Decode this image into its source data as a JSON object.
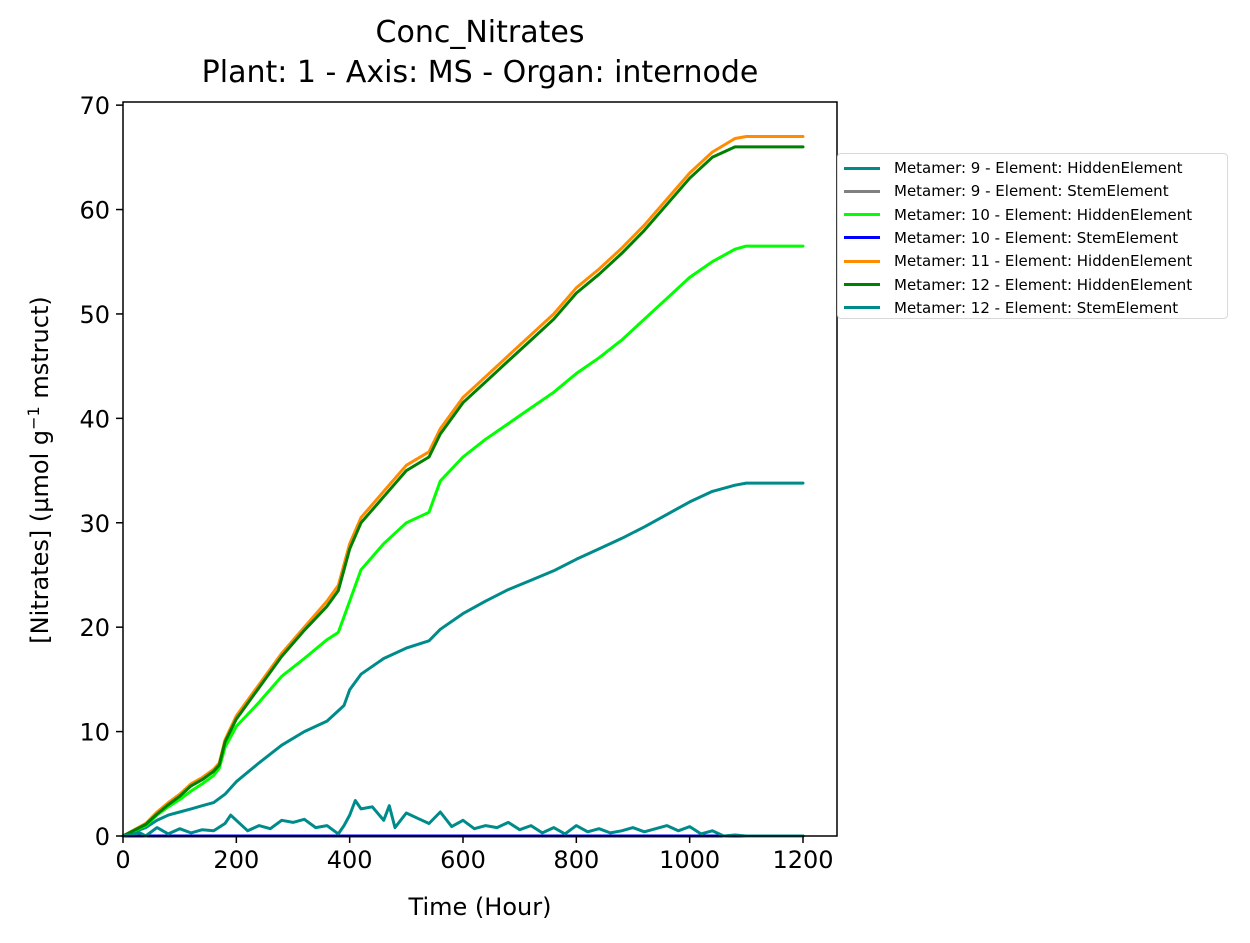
{
  "chart_data": {
    "type": "line",
    "title": "Conc_Nitrates",
    "subtitle": "Plant: 1 - Axis: MS - Organ: internode",
    "xlabel": "Time (Hour)",
    "ylabel_prefix": "[Nitrates] (µmol g",
    "ylabel_sup": "−1",
    "ylabel_suffix": " mstruct)",
    "xlim": [
      0,
      1260
    ],
    "ylim": [
      0,
      70.3
    ],
    "x_ticks": [
      0,
      200,
      400,
      600,
      800,
      1000,
      1200
    ],
    "y_ticks": [
      0,
      10,
      20,
      30,
      40,
      50,
      60,
      70
    ],
    "grid": false,
    "legend_position": "outside-right",
    "series": [
      {
        "name": "Metamer: 9 - Element: HiddenElement",
        "color": "#008b8b",
        "x": [
          0,
          40,
          60,
          80,
          100,
          120,
          140,
          160,
          180,
          200,
          240,
          280,
          320,
          360,
          390,
          400,
          420,
          460,
          500,
          540,
          560,
          600,
          640,
          680,
          720,
          760,
          800,
          840,
          880,
          920,
          960,
          1000,
          1040,
          1080,
          1100,
          1200
        ],
        "y": [
          0,
          0.8,
          1.5,
          2.0,
          2.3,
          2.6,
          2.9,
          3.2,
          4.0,
          5.2,
          7.0,
          8.7,
          10.0,
          11.0,
          12.5,
          14.0,
          15.5,
          17.0,
          18.0,
          18.7,
          19.8,
          21.3,
          22.5,
          23.6,
          24.5,
          25.4,
          26.5,
          27.5,
          28.5,
          29.6,
          30.8,
          32.0,
          33.0,
          33.6,
          33.8,
          33.8
        ]
      },
      {
        "name": "Metamer: 9 - Element: StemElement",
        "color": "#808080",
        "x": [
          0,
          1200
        ],
        "y": [
          0,
          0
        ]
      },
      {
        "name": "Metamer: 10 - Element: HiddenElement",
        "color": "#00ff00",
        "x": [
          0,
          40,
          60,
          80,
          100,
          120,
          140,
          160,
          170,
          180,
          200,
          240,
          280,
          320,
          360,
          380,
          390,
          400,
          420,
          460,
          500,
          540,
          560,
          600,
          640,
          680,
          720,
          760,
          800,
          840,
          880,
          920,
          960,
          1000,
          1040,
          1080,
          1100,
          1200
        ],
        "y": [
          0,
          1.0,
          2.0,
          2.8,
          3.5,
          4.3,
          5.0,
          5.8,
          6.5,
          8.5,
          10.5,
          12.8,
          15.3,
          17.0,
          18.8,
          19.5,
          21.0,
          22.5,
          25.5,
          28.0,
          30.0,
          31.0,
          34.0,
          36.3,
          38.0,
          39.5,
          41.0,
          42.5,
          44.3,
          45.8,
          47.5,
          49.5,
          51.5,
          53.5,
          55.0,
          56.2,
          56.5,
          56.5
        ]
      },
      {
        "name": "Metamer: 10 - Element: StemElement",
        "color": "#0000ff",
        "x": [
          0,
          1200
        ],
        "y": [
          0,
          0
        ]
      },
      {
        "name": "Metamer: 11 - Element: HiddenElement",
        "color": "#ff8c00",
        "x": [
          0,
          40,
          60,
          80,
          100,
          120,
          140,
          160,
          170,
          180,
          200,
          240,
          280,
          320,
          360,
          380,
          390,
          400,
          420,
          460,
          500,
          540,
          560,
          600,
          640,
          680,
          720,
          760,
          800,
          840,
          880,
          920,
          960,
          1000,
          1040,
          1080,
          1100,
          1200
        ],
        "y": [
          0,
          1.2,
          2.3,
          3.2,
          4.0,
          5.0,
          5.6,
          6.4,
          7.0,
          9.2,
          11.5,
          14.5,
          17.5,
          20.0,
          22.5,
          24.0,
          26.0,
          28.0,
          30.5,
          33.0,
          35.5,
          36.8,
          39.0,
          42.0,
          44.0,
          46.0,
          48.0,
          50.0,
          52.5,
          54.3,
          56.3,
          58.5,
          61.0,
          63.5,
          65.5,
          66.8,
          67.0,
          67.0
        ]
      },
      {
        "name": "Metamer: 12 - Element: HiddenElement",
        "color": "#008000",
        "x": [
          0,
          40,
          60,
          80,
          100,
          120,
          140,
          160,
          170,
          180,
          200,
          240,
          280,
          320,
          360,
          380,
          390,
          400,
          420,
          460,
          500,
          540,
          560,
          600,
          640,
          680,
          720,
          760,
          800,
          840,
          880,
          920,
          960,
          1000,
          1040,
          1080,
          1100,
          1200
        ],
        "y": [
          0,
          1.1,
          2.1,
          3.0,
          3.8,
          4.8,
          5.4,
          6.2,
          6.8,
          9.0,
          11.2,
          14.2,
          17.2,
          19.7,
          22.0,
          23.5,
          25.5,
          27.5,
          30.0,
          32.5,
          35.0,
          36.3,
          38.5,
          41.5,
          43.5,
          45.5,
          47.5,
          49.5,
          52.0,
          53.8,
          55.8,
          58.0,
          60.5,
          63.0,
          65.0,
          66.0,
          66.0,
          66.0
        ]
      },
      {
        "name": "Metamer: 12 - Element: StemElement",
        "color": "#008b8b",
        "x": [
          0,
          30,
          40,
          60,
          80,
          100,
          120,
          140,
          160,
          180,
          190,
          200,
          220,
          240,
          260,
          280,
          300,
          320,
          340,
          360,
          380,
          390,
          400,
          410,
          420,
          440,
          460,
          470,
          480,
          500,
          520,
          540,
          560,
          580,
          600,
          620,
          640,
          660,
          680,
          700,
          720,
          740,
          760,
          780,
          800,
          820,
          840,
          860,
          880,
          900,
          920,
          940,
          960,
          980,
          1000,
          1020,
          1040,
          1060,
          1080,
          1100,
          1200
        ],
        "y": [
          0,
          0.3,
          0.0,
          0.8,
          0.2,
          0.7,
          0.3,
          0.6,
          0.5,
          1.2,
          2.0,
          1.5,
          0.5,
          1.0,
          0.7,
          1.5,
          1.3,
          1.6,
          0.8,
          1.0,
          0.2,
          1.0,
          2.0,
          3.4,
          2.6,
          2.8,
          1.5,
          2.9,
          0.8,
          2.2,
          1.7,
          1.2,
          2.3,
          0.9,
          1.5,
          0.7,
          1.0,
          0.8,
          1.3,
          0.6,
          1.0,
          0.3,
          0.8,
          0.2,
          1.0,
          0.4,
          0.7,
          0.3,
          0.5,
          0.8,
          0.4,
          0.7,
          1.0,
          0.5,
          0.9,
          0.2,
          0.5,
          0.0,
          0.1,
          0.0,
          0.0
        ]
      }
    ]
  }
}
